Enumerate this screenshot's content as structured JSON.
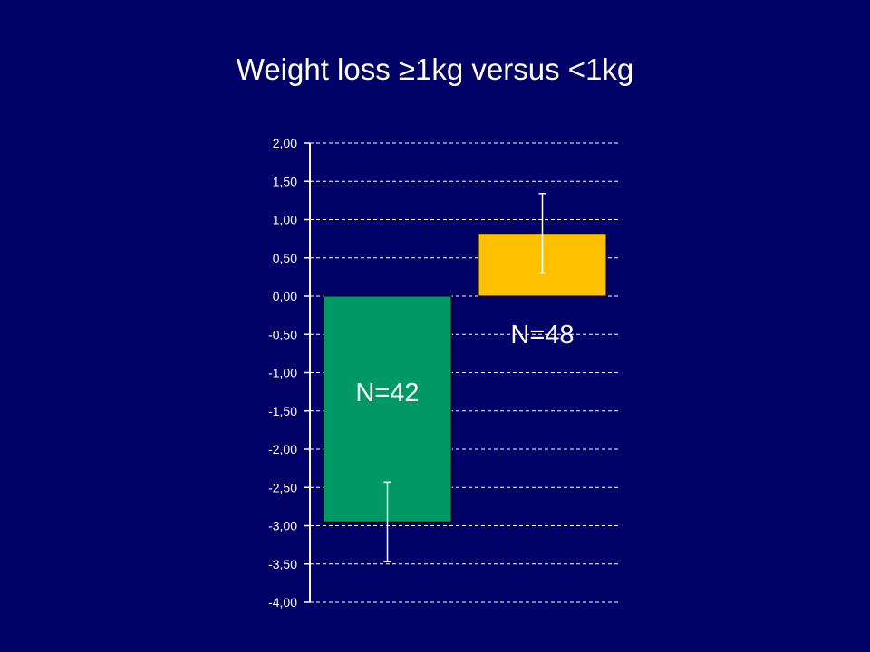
{
  "slide": {
    "title": "Weight loss ≥1kg versus <1kg"
  },
  "colors": {
    "background": "#000066",
    "bar1": "#009966",
    "bar2": "#ffc000",
    "axis": "#ffffff",
    "gridline": "#ffffff"
  },
  "chart_data": {
    "type": "bar",
    "title": "Weight loss ≥1kg versus <1kg",
    "categories": [
      "",
      ""
    ],
    "series": [
      {
        "values": [
          -2.95,
          0.82
        ],
        "error_low": [
          -3.47,
          0.3
        ],
        "error_high": [
          -2.43,
          1.34
        ],
        "labels": [
          "N=42",
          "N=48"
        ],
        "colors": [
          "#009966",
          "#ffc000"
        ]
      }
    ],
    "xlabel": "",
    "ylabel": "",
    "ylim": [
      -4.0,
      2.0
    ],
    "yticks": [
      2.0,
      1.5,
      1.0,
      0.5,
      0.0,
      -0.5,
      -1.0,
      -1.5,
      -2.0,
      -2.5,
      -3.0,
      -3.5,
      -4.0
    ],
    "ytick_labels": [
      "2,00",
      "1,50",
      "1,00",
      "0,50",
      "0,00",
      "-0,50",
      "-1,00",
      "-1,50",
      "-2,00",
      "-2,50",
      "-3,00",
      "-3,50",
      "-4,00"
    ],
    "grid": true,
    "legend": "none"
  }
}
